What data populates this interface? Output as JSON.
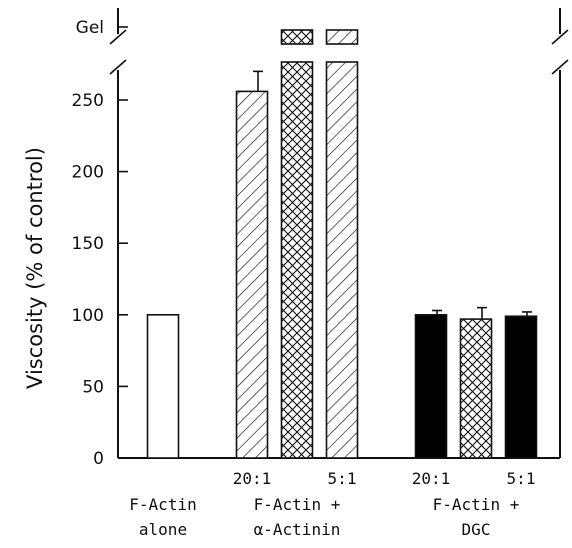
{
  "chart_data": {
    "type": "bar",
    "ylabel": "Viscosity (% of control)",
    "ylim": [
      0,
      250
    ],
    "yticks": [
      0,
      50,
      100,
      150,
      200,
      250
    ],
    "broken_axis_label": "Gel",
    "groups": [
      {
        "label_lines": [
          "F-Actin",
          "alone"
        ],
        "bars": [
          {
            "ratio": "",
            "value": 100,
            "error": 0,
            "pattern": "open",
            "gel": false
          }
        ]
      },
      {
        "label_lines": [
          "F-Actin +",
          "α-Actinin"
        ],
        "bars": [
          {
            "ratio": "20:1",
            "value": 256,
            "error": 14,
            "pattern": "diagonal",
            "gel": false
          },
          {
            "ratio": "",
            "value": null,
            "error": null,
            "pattern": "crosshatch",
            "gel": true
          },
          {
            "ratio": "5:1",
            "value": null,
            "error": null,
            "pattern": "diagonal",
            "gel": true
          }
        ]
      },
      {
        "label_lines": [
          "F-Actin +",
          "DGC"
        ],
        "bars": [
          {
            "ratio": "20:1",
            "value": 100,
            "error": 3,
            "pattern": "solid",
            "gel": false
          },
          {
            "ratio": "",
            "value": 97,
            "error": 8,
            "pattern": "crosshatch",
            "gel": false
          },
          {
            "ratio": "5:1",
            "value": 99,
            "error": 3,
            "pattern": "solid",
            "gel": false
          }
        ]
      }
    ]
  }
}
